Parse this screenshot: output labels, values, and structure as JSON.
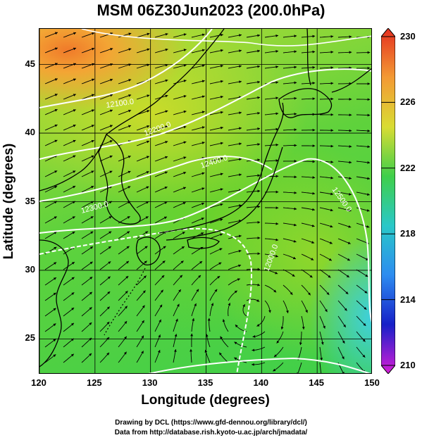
{
  "title": "MSM 06Z30Jun2023 (200.0hPa)",
  "xlabel": "Longitude (degrees)",
  "ylabel": "Latitude  (degrees)",
  "x_ticks": [
    "120",
    "125",
    "130",
    "135",
    "140",
    "145",
    "150"
  ],
  "y_ticks": [
    "45",
    "40",
    "35",
    "30",
    "25"
  ],
  "colorbar": {
    "labels": [
      "230",
      "226",
      "222",
      "218",
      "214",
      "210"
    ],
    "colors": [
      "#e53020",
      "#f39a34",
      "#d9dc33",
      "#3fcf4a",
      "#29c8c8",
      "#2d8cf0",
      "#1620c8",
      "#d81ed8"
    ]
  },
  "contour_labels": [
    "12100.0",
    "12200.0",
    "12300.0",
    "12400.0",
    "12500.0",
    "12000.0"
  ],
  "credits": {
    "line1": "Drawing by DCL (https://www.gfd-dennou.org/library/dcl/)",
    "line2": "Data from http://database.rish.kyoto-u.ac.jp/arch/jmadata/"
  },
  "chart_data": {
    "type": "heatmap",
    "title": "MSM 06Z30Jun2023 (200.0hPa)",
    "xlabel": "Longitude (degrees)",
    "ylabel": "Latitude  (degrees)",
    "xlim": [
      120,
      150
    ],
    "ylim": [
      22.4,
      47.6
    ],
    "colorbar_range": [
      210,
      230
    ],
    "colorbar_ticks": [
      230,
      226,
      222,
      218,
      214,
      210
    ],
    "overlays": [
      "streamlines",
      "geopotential height contours",
      "coastlines"
    ],
    "grid": true
  }
}
